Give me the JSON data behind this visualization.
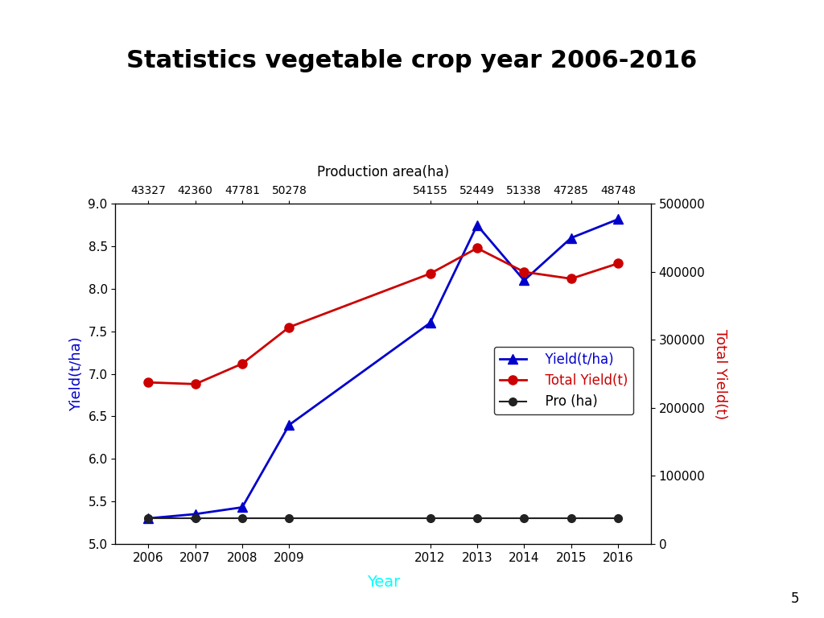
{
  "title": "Statistics vegetable crop year 2006-2016",
  "years": [
    2006,
    2007,
    2008,
    2009,
    2012,
    2013,
    2014,
    2015,
    2016
  ],
  "production_area": [
    43327,
    42360,
    47781,
    50278,
    54155,
    52449,
    51338,
    47285,
    48748
  ],
  "yield_tha": [
    5.3,
    5.35,
    5.43,
    6.4,
    7.6,
    8.75,
    8.1,
    8.6,
    8.82
  ],
  "total_yield_left_positions": [
    6.9,
    6.88,
    7.12,
    7.55,
    8.18,
    8.48,
    8.2,
    8.12,
    8.3
  ],
  "pro_ha": [
    5.3,
    5.3,
    5.3,
    5.3,
    5.3,
    5.3,
    5.3,
    5.3,
    5.3
  ],
  "yield_color": "#0000CC",
  "total_yield_color": "#CC0000",
  "pro_color": "#222222",
  "left_ylabel": "Yield(t/ha)",
  "left_ylabel_color": "#0000CC",
  "right_ylabel": "Total Yield(t)",
  "right_ylabel_color": "#CC0000",
  "xlabel": "Year",
  "xlabel_color": "cyan",
  "top_xlabel": "Production area(ha)",
  "ylim_left": [
    5.0,
    9.0
  ],
  "ylim_right": [
    0,
    500000
  ],
  "yticks_left": [
    5.0,
    5.5,
    6.0,
    6.5,
    7.0,
    7.5,
    8.0,
    8.5,
    9.0
  ],
  "yticks_right": [
    0,
    100000,
    200000,
    300000,
    400000,
    500000
  ],
  "xlim": [
    2005.3,
    2016.7
  ],
  "background_color": "#ffffff",
  "title_fontsize": 22,
  "axis_label_fontsize": 13,
  "tick_fontsize": 11,
  "legend_fontsize": 12,
  "top_tick_fontsize": 10,
  "xlabel_fontsize": 14,
  "page_number": "5"
}
